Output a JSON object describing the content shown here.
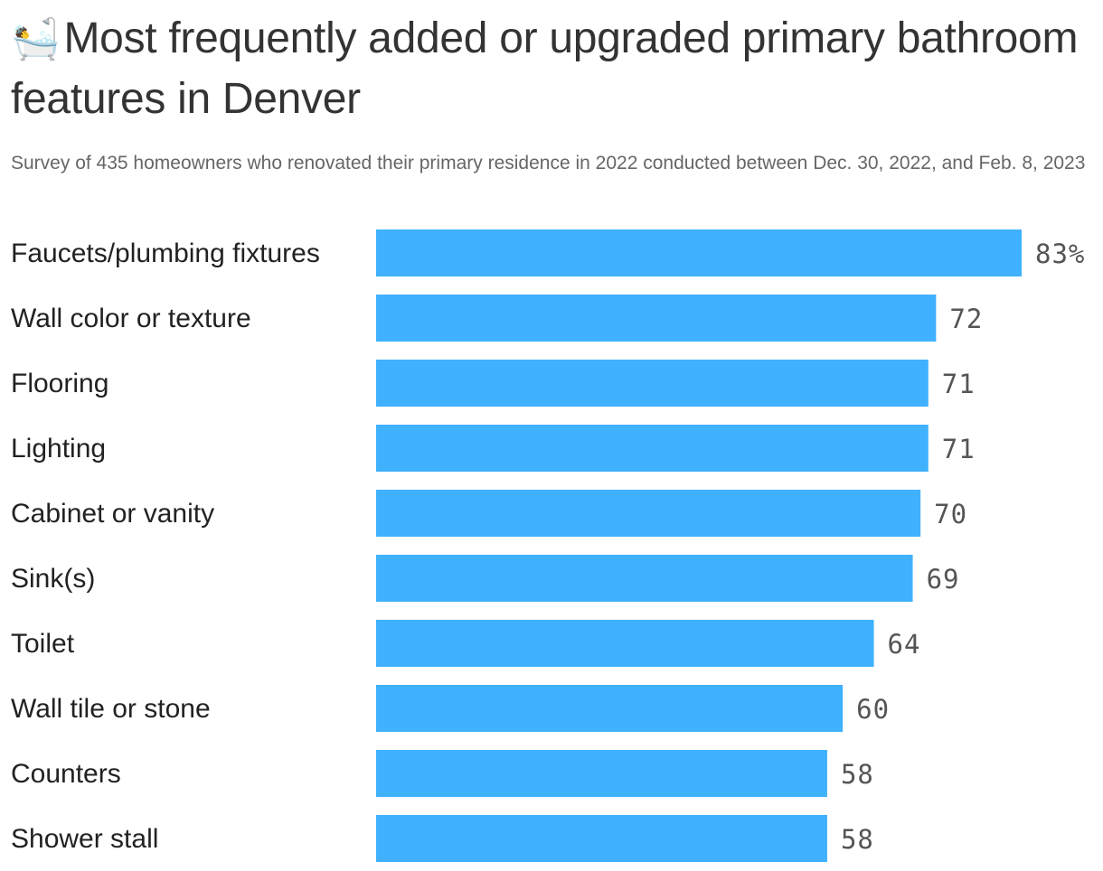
{
  "header": {
    "emoji": "🛀",
    "title": "Most frequently added or upgraded primary bathroom features in Denver",
    "subtitle": "Survey of 435 homeowners who renovated their primary residence in 2022 conducted between Dec. 30, 2022, and Feb. 8, 2023"
  },
  "colors": {
    "bar": "#3fb1fe",
    "title": "#333333",
    "subtitle": "#666666",
    "value_label": "#555555"
  },
  "chart_data": {
    "type": "bar",
    "orientation": "horizontal",
    "categories": [
      "Faucets/plumbing fixtures",
      "Wall color or texture",
      "Flooring",
      "Lighting",
      "Cabinet or vanity",
      "Sink(s)",
      "Toilet",
      "Wall tile or stone",
      "Counters",
      "Shower stall"
    ],
    "values": [
      83,
      72,
      71,
      71,
      70,
      69,
      64,
      60,
      58,
      58
    ],
    "value_labels": [
      "83%",
      "72",
      "71",
      "71",
      "70",
      "69",
      "64",
      "60",
      "58",
      "58"
    ],
    "unit": "%",
    "xlim": [
      0,
      83
    ],
    "grid": false,
    "legend": "none"
  }
}
